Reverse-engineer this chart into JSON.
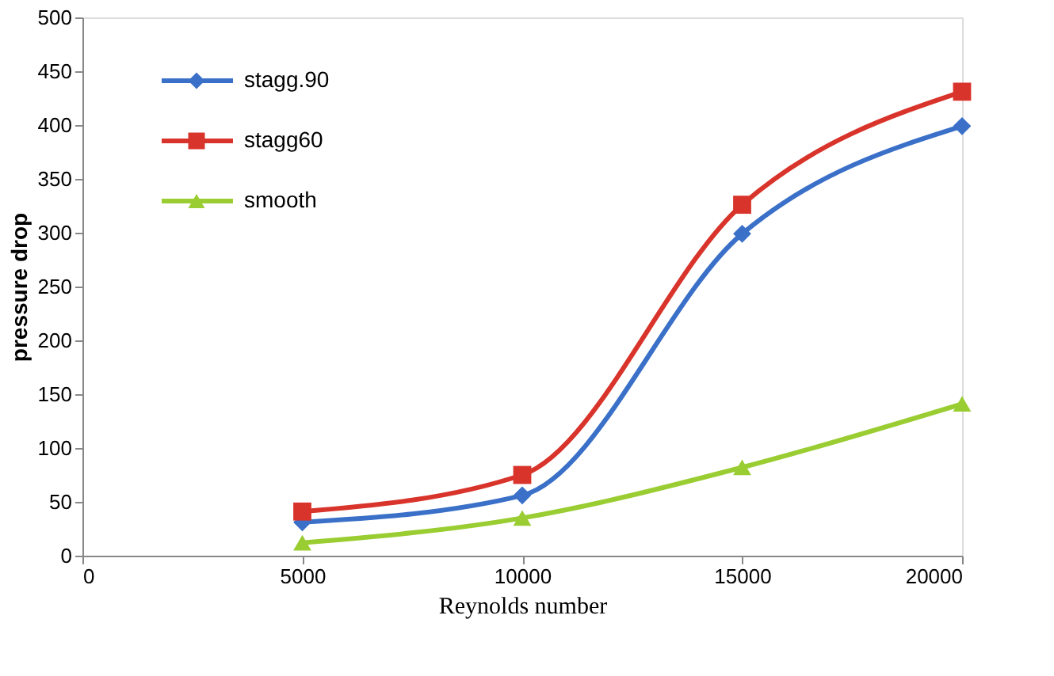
{
  "chart_data": {
    "type": "line",
    "xlabel": "Reynolds number",
    "ylabel": "pressure drop",
    "x": [
      5000,
      10000,
      15000,
      20000
    ],
    "series": [
      {
        "name": "stagg.90",
        "color": "#3a70c8",
        "marker": "diamond",
        "values": [
          31,
          56,
          299,
          399
        ]
      },
      {
        "name": "stagg60",
        "color": "#d9342b",
        "marker": "square",
        "values": [
          41,
          75,
          326,
          431
        ]
      },
      {
        "name": "smooth",
        "color": "#9acd32",
        "marker": "triangle",
        "values": [
          12,
          35,
          82,
          141
        ]
      }
    ],
    "xlim": [
      0,
      20000
    ],
    "xticks": [
      0,
      5000,
      10000,
      15000,
      20000
    ],
    "ylim": [
      0,
      500
    ],
    "yticks": [
      0,
      50,
      100,
      150,
      200,
      250,
      300,
      350,
      400,
      450,
      500
    ],
    "grid": false,
    "legend": "top left",
    "line_style": "solid"
  }
}
